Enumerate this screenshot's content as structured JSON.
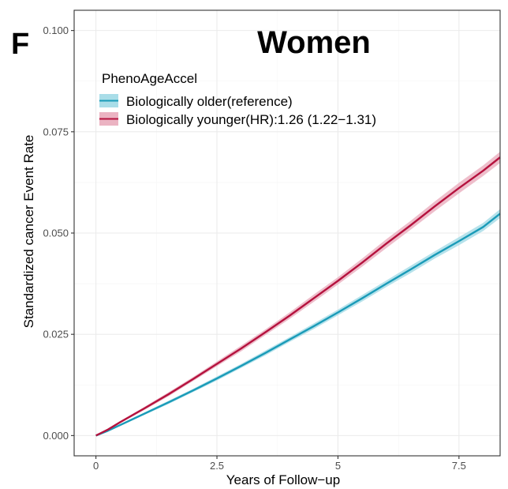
{
  "panel_label": "F",
  "chart_data": {
    "type": "line",
    "title": "Women",
    "xlabel": "Years of Follow−up",
    "ylabel": "Standardized cancer Event Rate",
    "xlim": [
      -0.45,
      8.35
    ],
    "ylim": [
      -0.005,
      0.105
    ],
    "x_ticks": [
      0,
      2.5,
      5,
      7.5
    ],
    "x_tick_labels": [
      "0",
      "2.5",
      "5",
      "7.5"
    ],
    "y_ticks": [
      0.0,
      0.025,
      0.05,
      0.075,
      0.1
    ],
    "y_tick_labels": [
      "0.000",
      "0.025",
      "0.050",
      "0.075",
      "0.100"
    ],
    "grid": true,
    "legend": {
      "title": "PhenoAgeAccel",
      "placement": "top-left"
    },
    "series": [
      {
        "name": "Biologically older(reference)",
        "color": "#1a9bb8",
        "band_color": "#a9dde8",
        "x": [
          0,
          0.25,
          0.5,
          0.75,
          1.0,
          1.5,
          2.0,
          2.5,
          3.0,
          3.5,
          4.0,
          4.5,
          5.0,
          5.5,
          6.0,
          6.5,
          7.0,
          7.5,
          8.0,
          8.35
        ],
        "y": [
          0.0,
          0.0012,
          0.0026,
          0.004,
          0.0054,
          0.0082,
          0.0111,
          0.0141,
          0.0172,
          0.0204,
          0.0237,
          0.027,
          0.0304,
          0.0339,
          0.0375,
          0.041,
          0.0446,
          0.048,
          0.0515,
          0.0548
        ],
        "band_halfwidth": [
          0.0,
          0.0001,
          0.0002,
          0.0002,
          0.0003,
          0.0004,
          0.0004,
          0.0005,
          0.0005,
          0.0006,
          0.0006,
          0.0007,
          0.0007,
          0.0008,
          0.0008,
          0.0009,
          0.0009,
          0.001,
          0.001,
          0.0011
        ]
      },
      {
        "name": "Biologically younger(HR):1.26 (1.22−1.31)",
        "color": "#b5123e",
        "band_color": "#ebb3c2",
        "x": [
          0,
          0.25,
          0.5,
          0.75,
          1.0,
          1.5,
          2.0,
          2.5,
          3.0,
          3.5,
          4.0,
          4.5,
          5.0,
          5.5,
          6.0,
          6.5,
          7.0,
          7.5,
          8.0,
          8.35
        ],
        "y": [
          0.0,
          0.0015,
          0.0033,
          0.005,
          0.0067,
          0.0102,
          0.0139,
          0.0177,
          0.0215,
          0.0255,
          0.0296,
          0.0339,
          0.0382,
          0.0427,
          0.0474,
          0.0519,
          0.0566,
          0.0611,
          0.0654,
          0.0687
        ],
        "band_halfwidth": [
          0.0,
          0.0001,
          0.0002,
          0.0003,
          0.0004,
          0.0005,
          0.0005,
          0.0006,
          0.0007,
          0.0007,
          0.0008,
          0.0009,
          0.0009,
          0.001,
          0.0011,
          0.0011,
          0.0012,
          0.0013,
          0.0013,
          0.0014
        ]
      }
    ]
  }
}
